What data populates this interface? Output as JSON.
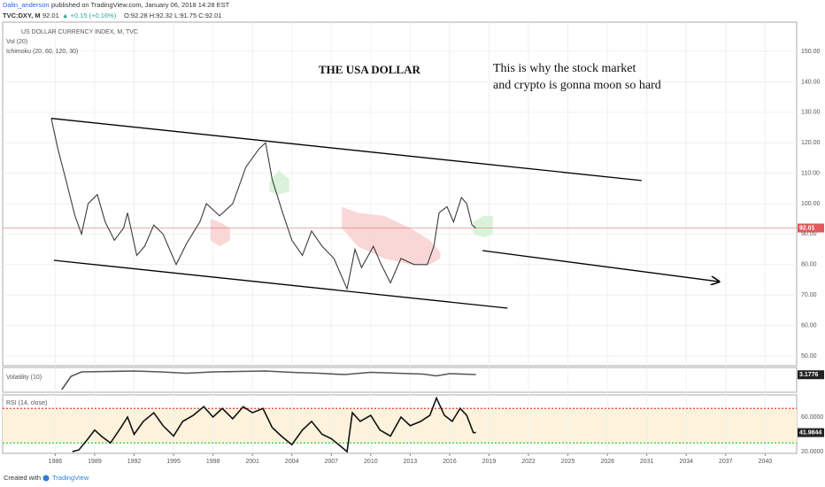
{
  "header": {
    "author": "Dalin_anderson",
    "published": "published on TradingView.com, January 06, 2018 14:28 EST",
    "symbol": "TVC:DXY, M",
    "price": "92.01",
    "change": "▲ +0.15 (+0.16%)",
    "ohlc": "O:92.28 H:92.32 L:91.75 C:92.01"
  },
  "footer": {
    "prefix": "Created with",
    "brand": "TradingView"
  },
  "chart_data": [
    {
      "type": "line",
      "title": "US DOLLAR CURRENCY INDEX, M, TVC",
      "legend": [
        "Vol (20)",
        "Ichimoku (20, 60, 120, 30)"
      ],
      "annotations": [
        "THE USA DOLLAR",
        "This is why the stock market",
        "and crypto is gonna moon so hard"
      ],
      "xlim": [
        1982,
        2042.4
      ],
      "ylim": [
        46.8,
        159.6
      ],
      "yticks": [
        {
          "value": 50,
          "label": "50.00"
        },
        {
          "value": 60,
          "label": "60.00"
        },
        {
          "value": 70,
          "label": "70.00"
        },
        {
          "value": 80,
          "label": "80.00"
        },
        {
          "value": 90,
          "label": "90.00"
        },
        {
          "value": 100,
          "label": "100.00"
        },
        {
          "value": 110,
          "label": "110.00"
        },
        {
          "value": 120,
          "label": "120.00"
        },
        {
          "value": 130,
          "label": "130.00"
        },
        {
          "value": 140,
          "label": "140.00"
        },
        {
          "value": 150,
          "label": "150.00"
        }
      ],
      "grid": true,
      "series": [
        {
          "color": "#3a3a3a",
          "x": [
            1985.7,
            1986.2,
            1986.8,
            1987.5,
            1988,
            1988.5,
            1989.2,
            1989.8,
            1990.5,
            1991.2,
            1991.5,
            1992.2,
            1992.8,
            1993.5,
            1994.2,
            1995.2,
            1996,
            1997,
            1997.5,
            1998.5,
            1999.5,
            2000.5,
            2001.5,
            2002,
            2002.5,
            2003.3,
            2004,
            2004.8,
            2005.5,
            2006.3,
            2007.2,
            2008.2,
            2008.8,
            2009.3,
            2010.2,
            2010.8,
            2011.5,
            2012.3,
            2013.3,
            2014.3,
            2014.8,
            2015.2,
            2015.8,
            2016.3,
            2016.9,
            2017.3,
            2017.7,
            2018
          ],
          "values": [
            128,
            118,
            108,
            96,
            90,
            100,
            103,
            94,
            88,
            92,
            97,
            83,
            86,
            93,
            90,
            80,
            87,
            94,
            100,
            96,
            100,
            112,
            118,
            120,
            108,
            97,
            88,
            83,
            91,
            86,
            82,
            72,
            85,
            79,
            86,
            80,
            74,
            82,
            80,
            80,
            86,
            97,
            99,
            94,
            102,
            100,
            93,
            92
          ]
        }
      ],
      "clouds": [
        {
          "color": "#f9d0d0",
          "x": [
            1997.8,
            1998.5,
            1999.3
          ],
          "upper": [
            95,
            94,
            92
          ],
          "lower": [
            88,
            86,
            88
          ]
        },
        {
          "color": "#d4f0d4",
          "x": [
            2002.3,
            2003,
            2003.8
          ],
          "upper": [
            107,
            111,
            108
          ],
          "lower": [
            104,
            103,
            104
          ]
        },
        {
          "color": "#f9d0d0",
          "x": [
            2007.8,
            2009,
            2011,
            2013,
            2014.5,
            2015.3
          ],
          "upper": [
            99,
            97,
            96,
            92,
            88,
            84
          ],
          "lower": [
            92,
            86,
            82,
            80,
            80,
            82
          ]
        },
        {
          "color": "#d4f0d4",
          "x": [
            2017.8,
            2018.6,
            2019.3
          ],
          "upper": [
            94,
            96,
            96
          ],
          "lower": [
            90,
            89,
            90
          ]
        }
      ],
      "trend_lines": [
        {
          "x": [
            1985.7,
            2030.6
          ],
          "values": [
            128,
            107.6
          ]
        },
        {
          "x": [
            1985.9,
            2020.4
          ],
          "values": [
            81.4,
            65.7
          ]
        },
        {
          "x": [
            2018.5,
            2036.5
          ],
          "values": [
            84.6,
            74.4
          ],
          "arrow": true
        }
      ],
      "last": 92.01,
      "last_color": "#e05a5a"
    },
    {
      "type": "line",
      "title": "Volatility (10)",
      "xlim": [
        1982,
        2042.4
      ],
      "ylim": [
        1.2,
        4.0
      ],
      "series": [
        {
          "color": "#555555",
          "x": [
            1986.5,
            1987.2,
            1988,
            1990,
            1992,
            1994,
            1996,
            1998,
            2000,
            2002,
            2004,
            2006,
            2008,
            2010,
            2012,
            2014,
            2015,
            2016,
            2018
          ],
          "values": [
            1.5,
            3.0,
            3.5,
            3.55,
            3.6,
            3.5,
            3.35,
            3.5,
            3.55,
            3.6,
            3.45,
            3.35,
            3.2,
            3.45,
            3.35,
            3.25,
            3.05,
            3.3,
            3.2
          ]
        }
      ],
      "last": 3.1776,
      "last_color": "#222222"
    },
    {
      "type": "line",
      "title": "RSI (14, close)",
      "xlim": [
        1982,
        2042.4
      ],
      "ylim": [
        18,
        85.6
      ],
      "yticks": [
        {
          "value": 20,
          "label": "20.0000"
        },
        {
          "value": 60,
          "label": "60.0000"
        }
      ],
      "bands": [
        {
          "value": 70,
          "color": "#e03a3a"
        },
        {
          "value": 30,
          "color": "#2bd22b"
        }
      ],
      "band_fill": "#fdf3dc",
      "xticks": [
        1986,
        1989,
        1992,
        1995,
        1998,
        2001,
        2004,
        2007,
        2010,
        2013,
        2016,
        2019,
        2022,
        2025,
        2028,
        2031,
        2034,
        2037,
        2040
      ],
      "series": [
        {
          "color": "#111111",
          "x": [
            1987.3,
            1987.8,
            1988.5,
            1989,
            1989.5,
            1990.2,
            1991,
            1991.5,
            1992,
            1992.7,
            1993.5,
            1994.2,
            1995,
            1995.7,
            1996.5,
            1997.3,
            1998,
            1998.7,
            1999.5,
            2000.3,
            2001,
            2001.8,
            2002.5,
            2003.2,
            2004,
            2004.8,
            2005.5,
            2006.3,
            2007,
            2007.8,
            2008.2,
            2008.6,
            2009.2,
            2010,
            2010.7,
            2011.5,
            2012.3,
            2013,
            2013.8,
            2014.5,
            2015,
            2015.6,
            2016.2,
            2016.8,
            2017.3,
            2017.8,
            2018
          ],
          "values": [
            20,
            22,
            35,
            45,
            38,
            30,
            48,
            60,
            40,
            55,
            65,
            50,
            38,
            55,
            62,
            72,
            60,
            70,
            58,
            72,
            65,
            70,
            48,
            38,
            28,
            45,
            55,
            40,
            35,
            25,
            20,
            65,
            55,
            62,
            45,
            38,
            60,
            50,
            55,
            62,
            82,
            62,
            55,
            70,
            62,
            42,
            42
          ]
        }
      ],
      "last": 41.9844,
      "last_color": "#222222"
    }
  ]
}
